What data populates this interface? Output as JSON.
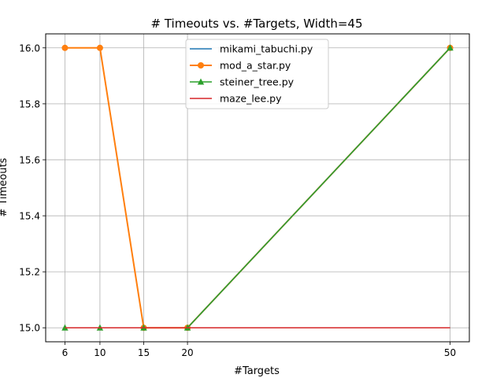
{
  "chart_data": {
    "type": "line",
    "title": "# Timeouts vs. #Targets, Width=45",
    "xlabel": "#Targets",
    "ylabel": "# Timeouts",
    "x": [
      6,
      10,
      15,
      20,
      50
    ],
    "xticks": [
      6,
      10,
      15,
      20,
      50
    ],
    "yticks": [
      15.0,
      15.2,
      15.4,
      15.6,
      15.8,
      16.0
    ],
    "xlim": [
      3.8,
      52.2
    ],
    "ylim": [
      14.95,
      16.05
    ],
    "grid": true,
    "legend": "upper-center",
    "series": [
      {
        "name": "mikami_tabuchi.py",
        "values": [
          15,
          15,
          15,
          15,
          16
        ],
        "color": "#1f77b4",
        "marker": "none"
      },
      {
        "name": "mod_a_star.py",
        "values": [
          16,
          16,
          15,
          15,
          16
        ],
        "color": "#ff7f0e",
        "marker": "circle"
      },
      {
        "name": "steiner_tree.py",
        "values": [
          15,
          15,
          15,
          15,
          16
        ],
        "color": "#2ca02c",
        "marker": "triangle"
      },
      {
        "name": "maze_lee.py",
        "values": [
          15,
          15,
          15,
          15,
          15
        ],
        "color": "#d62728",
        "marker": "none"
      }
    ]
  }
}
